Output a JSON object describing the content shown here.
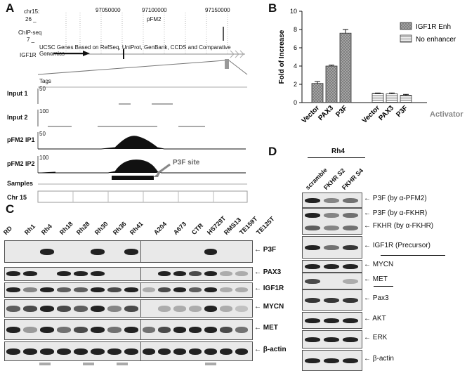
{
  "panels": {
    "A": "A",
    "B": "B",
    "C": "C",
    "D": "D"
  },
  "panelA": {
    "chrom": "chr15:",
    "coords": [
      "97050000",
      "97100000",
      "97150000"
    ],
    "scale_26": "26 _",
    "pfm2": "pFM2",
    "chipseq": "ChIP-seq",
    "scale_7": "7 _",
    "ucsc": "UCSC Genes Based on RefSeq, UniProt, GenBank, CCDS and Comparative Genomics",
    "gene": "IGF1R",
    "tags": "Tags",
    "tracks": [
      {
        "name": "Input 1",
        "scale": "50"
      },
      {
        "name": "Input 2",
        "scale": "100"
      },
      {
        "name": "pFM2 IP1",
        "scale": "50"
      },
      {
        "name": "pFM2 IP2",
        "scale": "100"
      }
    ],
    "p3f_site": "P3F site",
    "samples": "Samples",
    "chr15": "Chr 15"
  },
  "chart_data": {
    "type": "bar",
    "groups": [
      "IGF1R Enh",
      "No enhancer"
    ],
    "categories": [
      "Vector",
      "PAX3",
      "P3F"
    ],
    "series": [
      {
        "name": "IGF1R Enh",
        "values": [
          2.1,
          4.0,
          7.6
        ],
        "errors": [
          0.2,
          0.1,
          0.4
        ]
      },
      {
        "name": "No enhancer",
        "values": [
          1.0,
          0.95,
          0.8
        ],
        "errors": [
          0.05,
          0.1,
          0.1
        ]
      }
    ],
    "ylabel": "Fold of Increase",
    "xlabel": "Activator",
    "ylim": [
      0,
      10
    ],
    "yticks": [
      "0",
      "2",
      "4",
      "6",
      "8",
      "10"
    ],
    "legend_position": "top-right"
  },
  "panelC": {
    "lanes_left": [
      "RD",
      "Rh1",
      "Rh4",
      "Rh18",
      "Rh28",
      "Rh30",
      "Rh36",
      "Rh41"
    ],
    "lanes_right": [
      "A204",
      "A673",
      "CTR",
      "HS729T",
      "RMS13",
      "TE159T",
      "TE125T"
    ],
    "rows": [
      "P3F",
      "PAX3",
      "IGF1R",
      "MYCN",
      "MET",
      "β-actin"
    ]
  },
  "panelD": {
    "cell": "Rh4",
    "lanes": [
      "scramble",
      "FKHR S2",
      "FKHR S4"
    ],
    "rows": [
      "P3F (by α-PFM2)",
      "P3F (by α-FKHR)",
      "FKHR (by α-FKHR)",
      "IGF1R (Precursor)",
      "MYCN",
      "MET",
      "Pax3",
      "AKT",
      "ERK",
      "β-actin"
    ]
  },
  "colors": {
    "ink": "#111111",
    "blot_bg": "#e9e9e9",
    "band": "#222222",
    "marker": "#aaaaaa"
  }
}
